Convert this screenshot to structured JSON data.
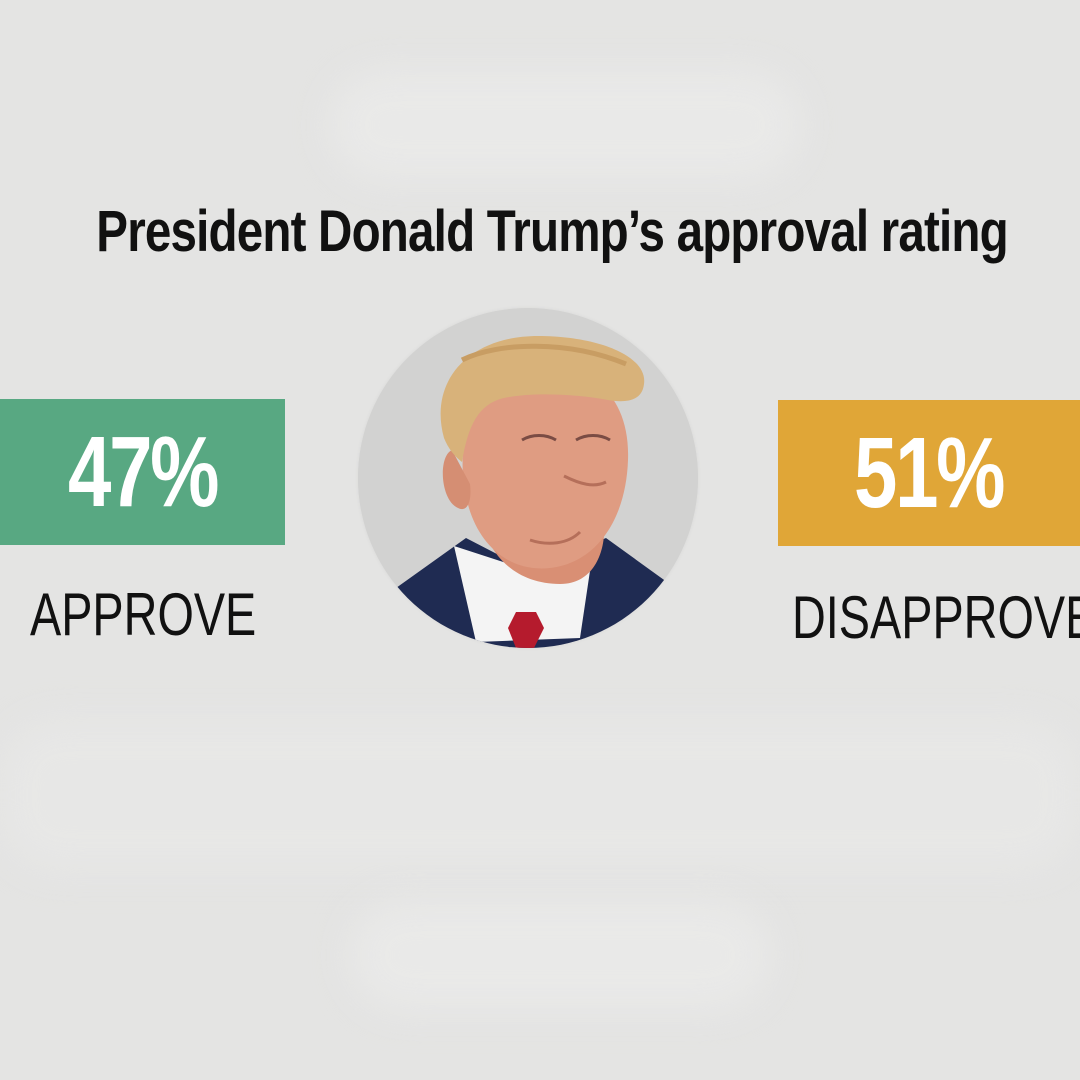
{
  "title": "President Donald Trump’s approval rating",
  "approve": {
    "value": "47%",
    "label": "APPROVE",
    "color": "#58a882"
  },
  "disapprove": {
    "value": "51%",
    "label": "DISAPPROVE",
    "color": "#e0a637"
  },
  "portrait": {
    "icon": "portrait-photo-icon"
  }
}
